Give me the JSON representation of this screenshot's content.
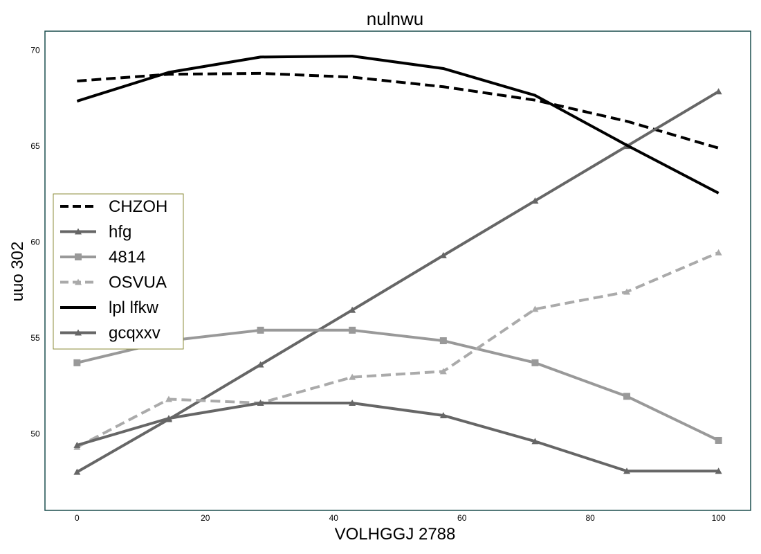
{
  "chart_data": {
    "type": "line",
    "title": "nulnwu",
    "xlabel": "VOLHGGJ 2788",
    "ylabel": "uuo 302",
    "xlim": [
      -5,
      105
    ],
    "ylim": [
      46,
      71
    ],
    "x_ticks": [
      "0",
      "20",
      "40",
      "60",
      "80",
      "100"
    ],
    "y_ticks": [
      "50",
      "55",
      "60",
      "65",
      "70"
    ],
    "x": [
      0,
      14.3,
      28.6,
      42.9,
      57.1,
      71.4,
      85.7,
      100
    ],
    "legend_position": "center-left",
    "grid": false,
    "series": [
      {
        "name": "CHZOH",
        "color": "#000000",
        "dash": "dashed",
        "marker": "none",
        "values": [
          68.4,
          68.75,
          68.8,
          68.6,
          68.1,
          67.4,
          66.3,
          64.9
        ]
      },
      {
        "name": "hfg",
        "color": "#666666",
        "dash": "solid",
        "marker": "triangle",
        "values": [
          48.0,
          50.75,
          53.6,
          56.45,
          59.3,
          62.15,
          65.0,
          67.85
        ]
      },
      {
        "name": "4814",
        "color": "#999999",
        "dash": "solid",
        "marker": "square",
        "values": [
          53.7,
          54.85,
          55.4,
          55.4,
          54.85,
          53.7,
          51.95,
          49.65
        ]
      },
      {
        "name": "OSVUA",
        "color": "#aaaaaa",
        "dash": "dashed",
        "marker": "triangle",
        "values": [
          49.3,
          51.8,
          51.6,
          52.95,
          53.25,
          56.5,
          57.4,
          59.45
        ]
      },
      {
        "name": "lpl lfkw",
        "color": "#000000",
        "dash": "solid",
        "marker": "none",
        "values": [
          67.35,
          68.85,
          69.65,
          69.7,
          69.05,
          67.65,
          65.05,
          62.55
        ]
      },
      {
        "name": "gcqxxv",
        "color": "#666666",
        "dash": "solid",
        "marker": "triangle",
        "values": [
          49.4,
          50.8,
          51.6,
          51.6,
          50.95,
          49.6,
          48.05,
          48.05
        ]
      }
    ]
  }
}
